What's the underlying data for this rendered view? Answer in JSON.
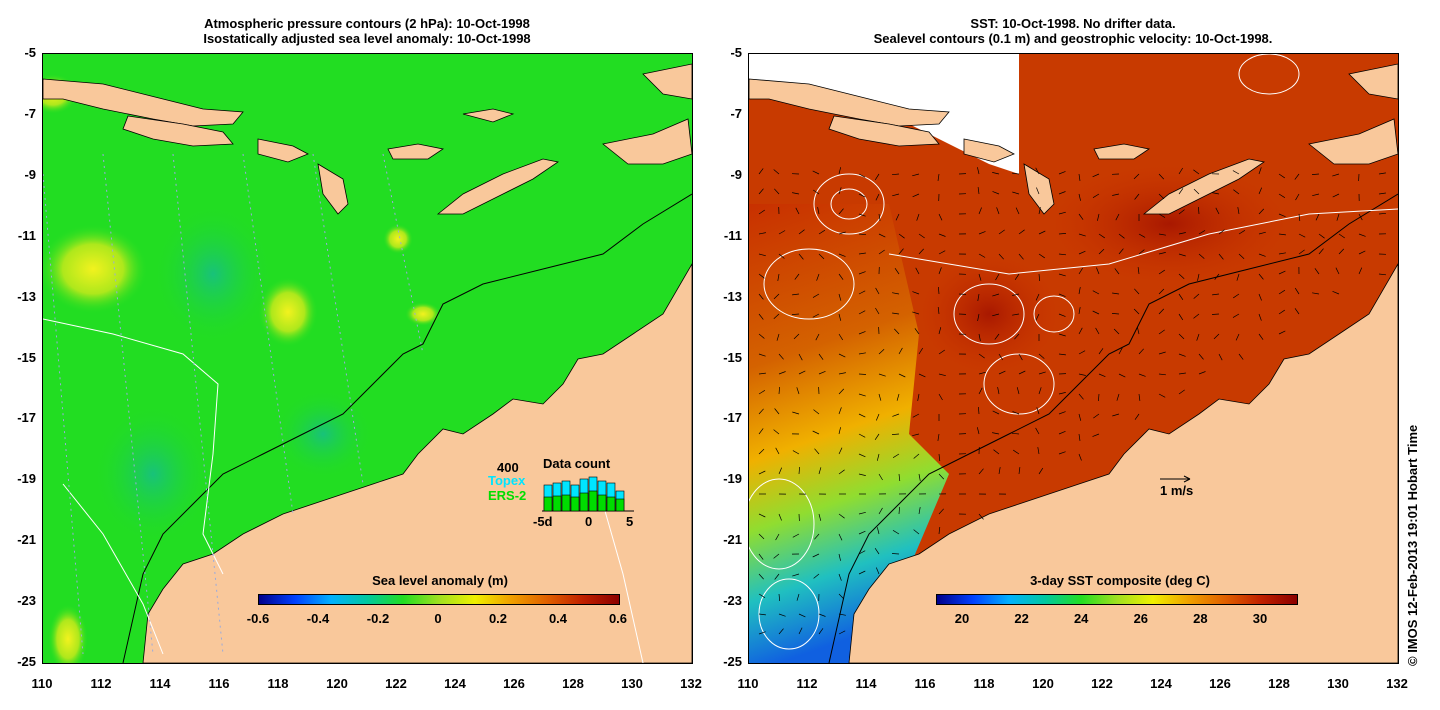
{
  "left_panel": {
    "title_line1": "Atmospheric pressure contours (2 hPa): 10-Oct-1998",
    "title_line2": "Isostatically adjusted sea level anomaly: 10-Oct-1998",
    "colorbar_title": "Sea level anomaly (m)",
    "colorbar_ticks": [
      "-0.6",
      "-0.4",
      "-0.2",
      "0",
      "0.2",
      "0.4",
      "0.6"
    ],
    "data_count": {
      "title": "Data count",
      "max_label": "400",
      "topex_label": "Topex",
      "ers_label": "ERS-2",
      "x_ticks": [
        "-5d",
        "0",
        "5"
      ]
    }
  },
  "right_panel": {
    "title_line1": "SST: 10-Oct-1998. No drifter data.",
    "title_line2": "Sealevel contours (0.1 m) and geostrophic velocity: 10-Oct-1998.",
    "colorbar_title": "3-day SST composite (deg C)",
    "colorbar_ticks": [
      "20",
      "22",
      "24",
      "26",
      "28",
      "30"
    ],
    "velocity_scale_label": "1 m/s"
  },
  "axes": {
    "x_ticks": [
      "110",
      "112",
      "114",
      "116",
      "118",
      "120",
      "122",
      "124",
      "126",
      "128",
      "130",
      "132"
    ],
    "y_ticks": [
      "-5",
      "-7",
      "-9",
      "-11",
      "-13",
      "-15",
      "-17",
      "-19",
      "-21",
      "-23",
      "-25"
    ]
  },
  "credit": "© IMOS 12-Feb-2013 19:01 Hobart Time",
  "colors": {
    "land": "#f9c89b",
    "ocean_left": "#22dd22",
    "topex": "#00e5ff",
    "ers": "#00dd00"
  }
}
